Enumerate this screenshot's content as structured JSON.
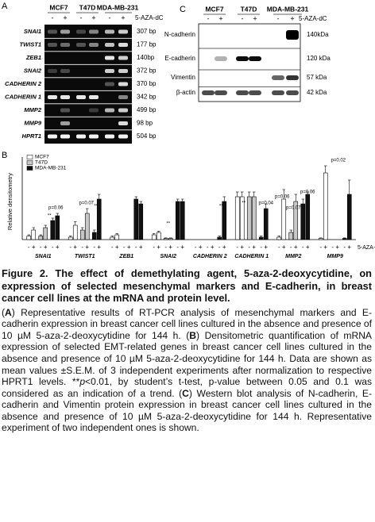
{
  "panel_a": {
    "label": "A",
    "cell_lines": [
      "MCF7",
      "T47D",
      "MDA-MB-231"
    ],
    "treatment_signs": [
      "-",
      "+"
    ],
    "treatment": "5-AZA-dC",
    "genes": [
      "SNAI1",
      "TWIST1",
      "ZEB1",
      "SNAI2",
      "CADHERIN 2",
      "CADHERIN 1",
      "MMP2",
      "MMP9",
      "HPRT1"
    ],
    "sizes": [
      "307 bp",
      "177 bp",
      "140bp",
      "372 bp",
      "370 bp",
      "342 bp",
      "499 bp",
      "98 bp",
      "504 bp"
    ]
  },
  "panel_c": {
    "label": "C",
    "cell_lines": [
      "MCF7",
      "T47D",
      "MDA-MB-231"
    ],
    "treatment_signs": [
      "-",
      "+"
    ],
    "treatment": "5-AZA-dC",
    "proteins": [
      "N-cadherin",
      "E-cadherin",
      "Vimentin",
      "β-actin"
    ],
    "sizes": [
      "140kDa",
      "120 kDa",
      "57 kDa",
      "42 kDa"
    ]
  },
  "chart_data": {
    "type": "bar",
    "panel_label": "B",
    "ylabel": "Relative densitometry",
    "categories": [
      "SNAI1",
      "TWIST1",
      "ZEB1",
      "SNAI2",
      "CADHERIN 2",
      "CADHERIN 1",
      "MMP2",
      "MMP9"
    ],
    "treatment_signs": [
      "-",
      "+"
    ],
    "treatment": "5-AZA-dC",
    "ylim": [
      0,
      3.2
    ],
    "legend": "upper left",
    "series": [
      {
        "name": "MCF7",
        "color": "#ffffff",
        "values": [
          [
            0.15,
            0.4
          ],
          [
            0.1,
            0.6
          ],
          [
            0.1,
            0.2
          ],
          [
            0.2,
            0.3
          ],
          [
            0,
            0
          ],
          [
            1.8,
            1.8
          ],
          [
            0.1,
            1.7
          ],
          [
            0.05,
            2.8
          ]
        ],
        "errors": [
          [
            0.05,
            0.1
          ],
          [
            0.05,
            0.15
          ],
          [
            0.05,
            0.05
          ],
          [
            0.05,
            0.05
          ],
          [
            0,
            0
          ],
          [
            0.2,
            0.2
          ],
          [
            0.05,
            0.4
          ],
          [
            0.02,
            0.3
          ]
        ]
      },
      {
        "name": "T47D",
        "color": "#c8c8c8",
        "values": [
          [
            0.15,
            0.5
          ],
          [
            0.4,
            1.1
          ],
          [
            0,
            0
          ],
          [
            0.05,
            0.05
          ],
          [
            0,
            0
          ],
          [
            1.8,
            1.8
          ],
          [
            0.3,
            1.6
          ],
          [
            0,
            0
          ]
        ],
        "errors": [
          [
            0.05,
            0.1
          ],
          [
            0.1,
            0.2
          ],
          [
            0,
            0
          ],
          [
            0.02,
            0.02
          ],
          [
            0,
            0
          ],
          [
            0.2,
            0.2
          ],
          [
            0.1,
            0.3
          ],
          [
            0,
            0
          ]
        ]
      },
      {
        "name": "MDA-MB-231",
        "color": "#111111",
        "values": [
          [
            0.8,
            1.0
          ],
          [
            0.3,
            1.7
          ],
          [
            1.7,
            1.5
          ],
          [
            1.6,
            1.6
          ],
          [
            0.1,
            1.6
          ],
          [
            0.1,
            1.3
          ],
          [
            1.5,
            1.9
          ],
          [
            0.05,
            1.9
          ]
        ],
        "errors": [
          [
            0.1,
            0.1
          ],
          [
            0.1,
            0.2
          ],
          [
            0.1,
            0.1
          ],
          [
            0.1,
            0.1
          ],
          [
            0.05,
            0.2
          ],
          [
            0.05,
            0.2
          ],
          [
            0.2,
            0.1
          ],
          [
            0.02,
            0.6
          ]
        ]
      }
    ],
    "annotations": [
      "**",
      "p=0.06",
      "p=0.07",
      "**",
      "**",
      "**",
      "**",
      "p=0.04",
      "p=0.06",
      "p=0.07",
      "p=0.06",
      "p=0.02"
    ]
  },
  "caption": {
    "title": "Figure 2. The effect of demethylating agent, 5-aza-2-deoxycytidine, on expression of selected mesenchymal markers and E-cadherin, in breast cancer cell lines at the mRNA and protein level.",
    "segments": [
      "(",
      "A",
      ") Representative results of RT-PCR analysis of mesenchymal markers and E-cadherin expression in breast cancer cell lines cultured in the absence and presence of 10 µM 5-aza-2-deoxycytidine for 144 h. (",
      "B",
      ") Densitometric quantification of mRNA expression of selected EMT-related genes in breast cancer cell lines cultured in the absence and presence of 10 µM 5-aza-2-deoxycytidine for 144 h. Data are shown as mean values ±S.E.M. of 3 independent experiments after normalization to respective HPRT1 levels. **",
      "p",
      "<0.01, by student’s t-test, p-value between 0.05 and 0.1 was considered as an indication of a trend. (",
      "C",
      ") Western blot analysis of N-cadherin, E-cadherin and Vimentin protein expression in breast cancer cell lines cultured in the absence and presence of 10 µM 5-aza-2-deoxycytidine for 144 h. Representative experiment of two independent ones is shown."
    ]
  }
}
